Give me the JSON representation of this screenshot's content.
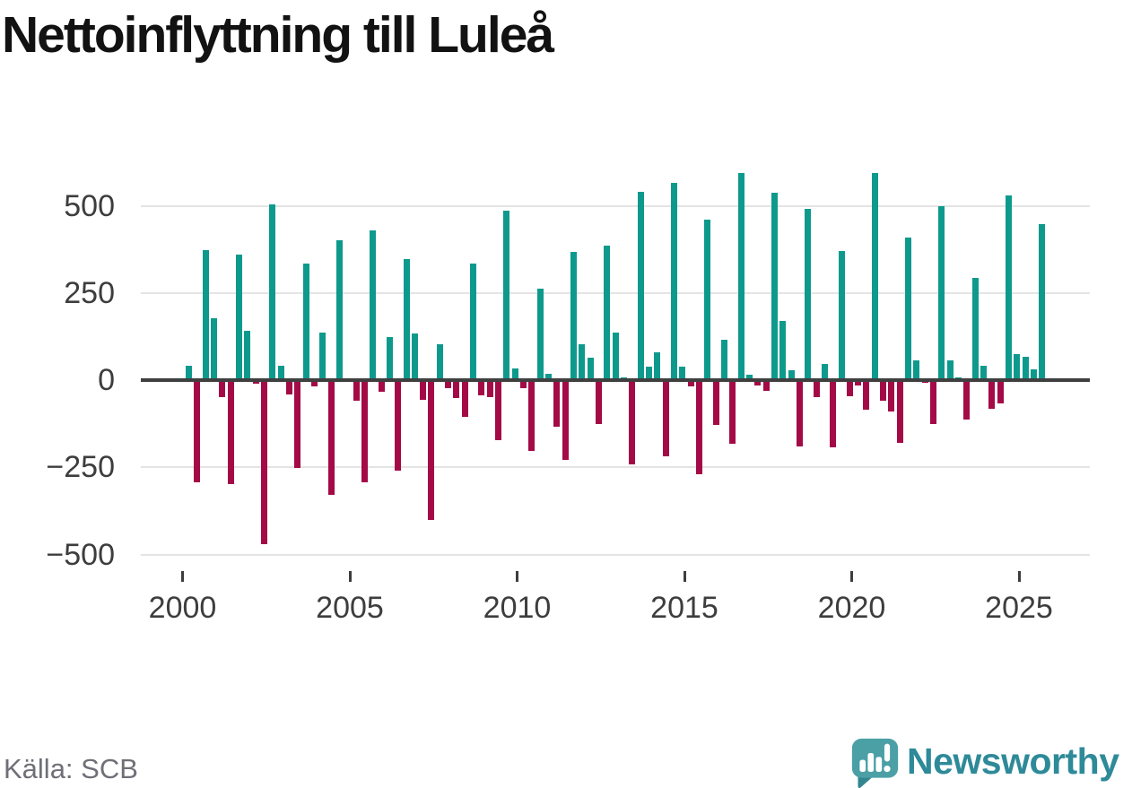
{
  "title": "Nettoinflyttning till Luleå",
  "source": "Källa: SCB",
  "branding": {
    "logo_text": "Newsworthy",
    "logo_icon": "newsworthy-speech-bubble-bar-chart-icon"
  },
  "colors": {
    "positive_bar": "#0d9a8d",
    "negative_bar": "#a30a46",
    "gridline": "#e4e4e4",
    "zero_line": "#3f3f3f",
    "axis_text": "#3d3d3d",
    "title_text": "#121212",
    "source_text": "#6f6f78",
    "logo_text": "#2e8a99",
    "logo_icon_body": "#4ba0a6",
    "logo_icon_tail": "#33868f"
  },
  "chart_data": {
    "type": "bar",
    "title": "Nettoinflyttning till Luleå",
    "frequency": "quarterly",
    "start": "2000 Q1",
    "end": "2025 Q3",
    "grid": true,
    "legend": false,
    "xlabel": "",
    "ylabel": "",
    "ylim": [
      -520,
      640
    ],
    "y_ticks": [
      500,
      250,
      0,
      -250,
      -500
    ],
    "y_tick_labels": [
      "500",
      "250",
      "0",
      "−250",
      "−500"
    ],
    "x_tick_labels": [
      "2000",
      "2005",
      "2010",
      "2015",
      "2020",
      "2025"
    ],
    "series_by_year": [
      {
        "year": 2000,
        "values": [
          42,
          -294,
          372,
          178
        ]
      },
      {
        "year": 2001,
        "values": [
          -48,
          -298,
          360,
          142
        ]
      },
      {
        "year": 2002,
        "values": [
          -9,
          -470,
          505,
          40
        ]
      },
      {
        "year": 2003,
        "values": [
          -41,
          -251,
          334,
          -17
        ]
      },
      {
        "year": 2004,
        "values": [
          136,
          -328,
          400,
          2
        ]
      },
      {
        "year": 2005,
        "values": [
          -58,
          -294,
          430,
          -33
        ]
      },
      {
        "year": 2006,
        "values": [
          123,
          -259,
          348,
          134
        ]
      },
      {
        "year": 2007,
        "values": [
          -56,
          -400,
          103,
          -22
        ]
      },
      {
        "year": 2008,
        "values": [
          -51,
          -105,
          335,
          -44
        ]
      },
      {
        "year": 2009,
        "values": [
          -48,
          -171,
          486,
          33
        ]
      },
      {
        "year": 2010,
        "values": [
          -22,
          -202,
          263,
          19
        ]
      },
      {
        "year": 2011,
        "values": [
          -134,
          -230,
          368,
          103
        ]
      },
      {
        "year": 2012,
        "values": [
          64,
          -127,
          385,
          137
        ]
      },
      {
        "year": 2013,
        "values": [
          8,
          -241,
          540,
          38
        ]
      },
      {
        "year": 2014,
        "values": [
          79,
          -219,
          565,
          38
        ]
      },
      {
        "year": 2015,
        "values": [
          -18,
          -270,
          460,
          -128
        ]
      },
      {
        "year": 2016,
        "values": [
          115,
          -182,
          595,
          16
        ]
      },
      {
        "year": 2017,
        "values": [
          -15,
          -31,
          538,
          169
        ]
      },
      {
        "year": 2018,
        "values": [
          29,
          -191,
          492,
          -50
        ]
      },
      {
        "year": 2019,
        "values": [
          46,
          -193,
          370,
          -45
        ]
      },
      {
        "year": 2020,
        "values": [
          -15,
          -86,
          595,
          -58
        ]
      },
      {
        "year": 2021,
        "values": [
          -91,
          -180,
          410,
          57
        ]
      },
      {
        "year": 2022,
        "values": [
          -7,
          -125,
          500,
          57
        ]
      },
      {
        "year": 2023,
        "values": [
          8,
          -114,
          293,
          42
        ]
      },
      {
        "year": 2024,
        "values": [
          -82,
          -68,
          530,
          74
        ]
      },
      {
        "year": 2025,
        "values": [
          66,
          32,
          448
        ]
      }
    ]
  }
}
